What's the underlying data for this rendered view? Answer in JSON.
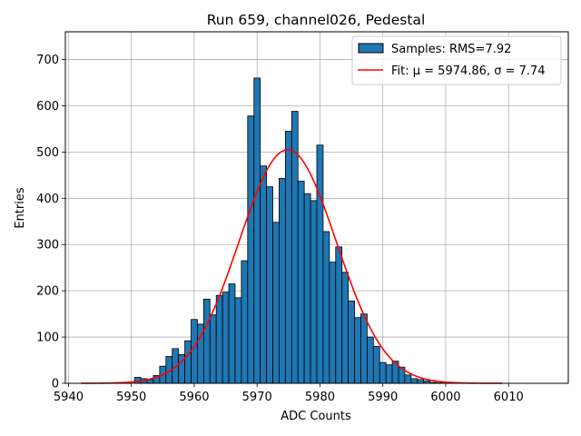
{
  "chart_data": {
    "type": "bar",
    "title": "Run 659, channel026, Pedestal",
    "xlabel": "ADC Counts",
    "ylabel": "Entries",
    "xlim": [
      5939.5,
      6019.5
    ],
    "ylim": [
      0,
      760
    ],
    "xticks": [
      5940,
      5950,
      5960,
      5970,
      5980,
      5990,
      6000,
      6010
    ],
    "yticks": [
      0,
      100,
      200,
      300,
      400,
      500,
      600,
      700
    ],
    "grid": true,
    "legend_position": "top-right",
    "histogram": {
      "name": "Samples: RMS=7.92",
      "color": "#1f77b4",
      "bin_width": 1,
      "x": [
        5951,
        5952,
        5953,
        5954,
        5955,
        5956,
        5957,
        5958,
        5959,
        5960,
        5961,
        5962,
        5963,
        5964,
        5965,
        5966,
        5967,
        5968,
        5969,
        5970,
        5971,
        5972,
        5973,
        5974,
        5975,
        5976,
        5977,
        5978,
        5979,
        5980,
        5981,
        5982,
        5983,
        5984,
        5985,
        5986,
        5987,
        5988,
        5989,
        5990,
        5991,
        5992,
        5993,
        5994,
        5995,
        5996,
        5997,
        5998,
        5999
      ],
      "values": [
        13,
        10,
        8,
        17,
        37,
        58,
        75,
        62,
        92,
        138,
        128,
        182,
        148,
        190,
        197,
        215,
        185,
        265,
        578,
        660,
        470,
        425,
        348,
        443,
        545,
        588,
        437,
        410,
        395,
        515,
        328,
        262,
        295,
        240,
        178,
        142,
        150,
        100,
        80,
        45,
        40,
        48,
        35,
        18,
        10,
        8,
        5,
        2,
        1
      ]
    },
    "fit": {
      "name": "Fit: μ = 5974.86, σ = 7.74",
      "color": "#ff0000",
      "mu": 5974.86,
      "sigma": 7.74,
      "amplitude": 505,
      "x_range": [
        5942,
        6009
      ]
    }
  }
}
